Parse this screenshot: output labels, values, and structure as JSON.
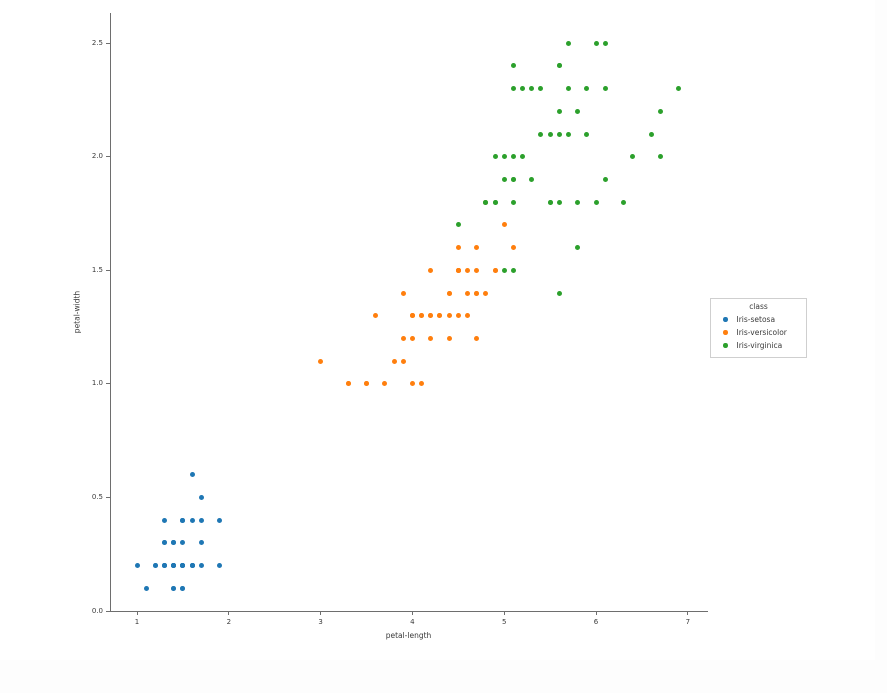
{
  "chart_data": {
    "type": "scatter",
    "title": "",
    "xlabel": "petal-length",
    "ylabel": "petal-width",
    "xlim": [
      0.7167,
      7.22
    ],
    "ylim": [
      0.0,
      2.6331
    ],
    "x_ticks": [
      "1",
      "2",
      "3",
      "4",
      "5",
      "6",
      "7"
    ],
    "x_tick_values": [
      1,
      2,
      3,
      4,
      5,
      6,
      7
    ],
    "y_ticks": [
      "0.0",
      "0.5",
      "1.0",
      "1.5",
      "2.0",
      "2.5"
    ],
    "y_tick_values": [
      0.0,
      0.5,
      1.0,
      1.5,
      2.0,
      2.5
    ],
    "grid": false,
    "legend": {
      "title": "class",
      "position": "outside-right"
    },
    "series": [
      {
        "name": "Iris-setosa",
        "color": "#1f77b4",
        "points": [
          [
            1.4,
            0.2
          ],
          [
            1.4,
            0.2
          ],
          [
            1.3,
            0.2
          ],
          [
            1.5,
            0.2
          ],
          [
            1.4,
            0.2
          ],
          [
            1.7,
            0.4
          ],
          [
            1.4,
            0.3
          ],
          [
            1.5,
            0.2
          ],
          [
            1.4,
            0.2
          ],
          [
            1.5,
            0.1
          ],
          [
            1.5,
            0.2
          ],
          [
            1.6,
            0.2
          ],
          [
            1.4,
            0.1
          ],
          [
            1.1,
            0.1
          ],
          [
            1.2,
            0.2
          ],
          [
            1.5,
            0.4
          ],
          [
            1.3,
            0.4
          ],
          [
            1.4,
            0.3
          ],
          [
            1.7,
            0.3
          ],
          [
            1.5,
            0.3
          ],
          [
            1.7,
            0.2
          ],
          [
            1.5,
            0.4
          ],
          [
            1.0,
            0.2
          ],
          [
            1.7,
            0.5
          ],
          [
            1.9,
            0.2
          ],
          [
            1.6,
            0.2
          ],
          [
            1.6,
            0.4
          ],
          [
            1.5,
            0.2
          ],
          [
            1.4,
            0.2
          ],
          [
            1.6,
            0.2
          ],
          [
            1.6,
            0.2
          ],
          [
            1.5,
            0.4
          ],
          [
            1.5,
            0.1
          ],
          [
            1.4,
            0.2
          ],
          [
            1.5,
            0.2
          ],
          [
            1.2,
            0.2
          ],
          [
            1.3,
            0.2
          ],
          [
            1.4,
            0.1
          ],
          [
            1.3,
            0.2
          ],
          [
            1.5,
            0.2
          ],
          [
            1.3,
            0.3
          ],
          [
            1.3,
            0.3
          ],
          [
            1.3,
            0.2
          ],
          [
            1.6,
            0.6
          ],
          [
            1.9,
            0.4
          ],
          [
            1.4,
            0.3
          ],
          [
            1.6,
            0.2
          ],
          [
            1.4,
            0.2
          ],
          [
            1.5,
            0.2
          ],
          [
            1.4,
            0.2
          ]
        ]
      },
      {
        "name": "Iris-versicolor",
        "color": "#ff7f0e",
        "points": [
          [
            4.7,
            1.4
          ],
          [
            4.5,
            1.5
          ],
          [
            4.9,
            1.5
          ],
          [
            4.0,
            1.3
          ],
          [
            4.6,
            1.5
          ],
          [
            4.5,
            1.3
          ],
          [
            4.7,
            1.6
          ],
          [
            3.3,
            1.0
          ],
          [
            4.6,
            1.3
          ],
          [
            3.9,
            1.4
          ],
          [
            3.5,
            1.0
          ],
          [
            4.2,
            1.5
          ],
          [
            4.0,
            1.0
          ],
          [
            4.7,
            1.4
          ],
          [
            3.6,
            1.3
          ],
          [
            4.4,
            1.4
          ],
          [
            4.5,
            1.5
          ],
          [
            4.1,
            1.0
          ],
          [
            4.5,
            1.5
          ],
          [
            3.9,
            1.1
          ],
          [
            4.8,
            1.8
          ],
          [
            4.0,
            1.3
          ],
          [
            4.9,
            1.5
          ],
          [
            4.7,
            1.2
          ],
          [
            4.3,
            1.3
          ],
          [
            4.4,
            1.4
          ],
          [
            4.8,
            1.4
          ],
          [
            5.0,
            1.7
          ],
          [
            4.5,
            1.5
          ],
          [
            3.5,
            1.0
          ],
          [
            3.8,
            1.1
          ],
          [
            3.7,
            1.0
          ],
          [
            3.9,
            1.2
          ],
          [
            5.1,
            1.6
          ],
          [
            4.5,
            1.5
          ],
          [
            4.5,
            1.6
          ],
          [
            4.7,
            1.5
          ],
          [
            4.4,
            1.3
          ],
          [
            4.1,
            1.3
          ],
          [
            4.0,
            1.3
          ],
          [
            4.4,
            1.2
          ],
          [
            4.6,
            1.4
          ],
          [
            4.0,
            1.2
          ],
          [
            3.3,
            1.0
          ],
          [
            4.2,
            1.3
          ],
          [
            4.2,
            1.2
          ],
          [
            4.2,
            1.3
          ],
          [
            4.3,
            1.3
          ],
          [
            3.0,
            1.1
          ],
          [
            4.1,
            1.3
          ]
        ]
      },
      {
        "name": "Iris-virginica",
        "color": "#2ca02c",
        "points": [
          [
            6.0,
            2.5
          ],
          [
            5.1,
            1.9
          ],
          [
            5.9,
            2.1
          ],
          [
            5.6,
            1.8
          ],
          [
            5.8,
            2.2
          ],
          [
            6.6,
            2.1
          ],
          [
            4.5,
            1.7
          ],
          [
            6.3,
            1.8
          ],
          [
            5.8,
            1.8
          ],
          [
            6.1,
            2.5
          ],
          [
            5.1,
            2.0
          ],
          [
            5.3,
            1.9
          ],
          [
            5.5,
            2.1
          ],
          [
            5.0,
            2.0
          ],
          [
            5.1,
            2.4
          ],
          [
            5.3,
            2.3
          ],
          [
            5.5,
            1.8
          ],
          [
            6.7,
            2.2
          ],
          [
            6.9,
            2.3
          ],
          [
            5.0,
            1.5
          ],
          [
            5.7,
            2.3
          ],
          [
            4.9,
            2.0
          ],
          [
            6.7,
            2.0
          ],
          [
            4.9,
            1.8
          ],
          [
            5.7,
            2.1
          ],
          [
            6.0,
            1.8
          ],
          [
            4.8,
            1.8
          ],
          [
            4.9,
            1.8
          ],
          [
            5.6,
            2.1
          ],
          [
            5.8,
            1.6
          ],
          [
            6.1,
            1.9
          ],
          [
            6.4,
            2.0
          ],
          [
            5.6,
            2.2
          ],
          [
            5.1,
            1.5
          ],
          [
            5.6,
            1.4
          ],
          [
            6.1,
            2.3
          ],
          [
            5.6,
            2.4
          ],
          [
            5.5,
            1.8
          ],
          [
            4.8,
            1.8
          ],
          [
            5.4,
            2.1
          ],
          [
            5.6,
            2.4
          ],
          [
            5.1,
            2.3
          ],
          [
            5.1,
            1.9
          ],
          [
            5.9,
            2.3
          ],
          [
            5.7,
            2.5
          ],
          [
            5.2,
            2.3
          ],
          [
            5.0,
            1.9
          ],
          [
            5.2,
            2.0
          ],
          [
            5.4,
            2.3
          ],
          [
            5.1,
            1.8
          ]
        ]
      }
    ]
  }
}
